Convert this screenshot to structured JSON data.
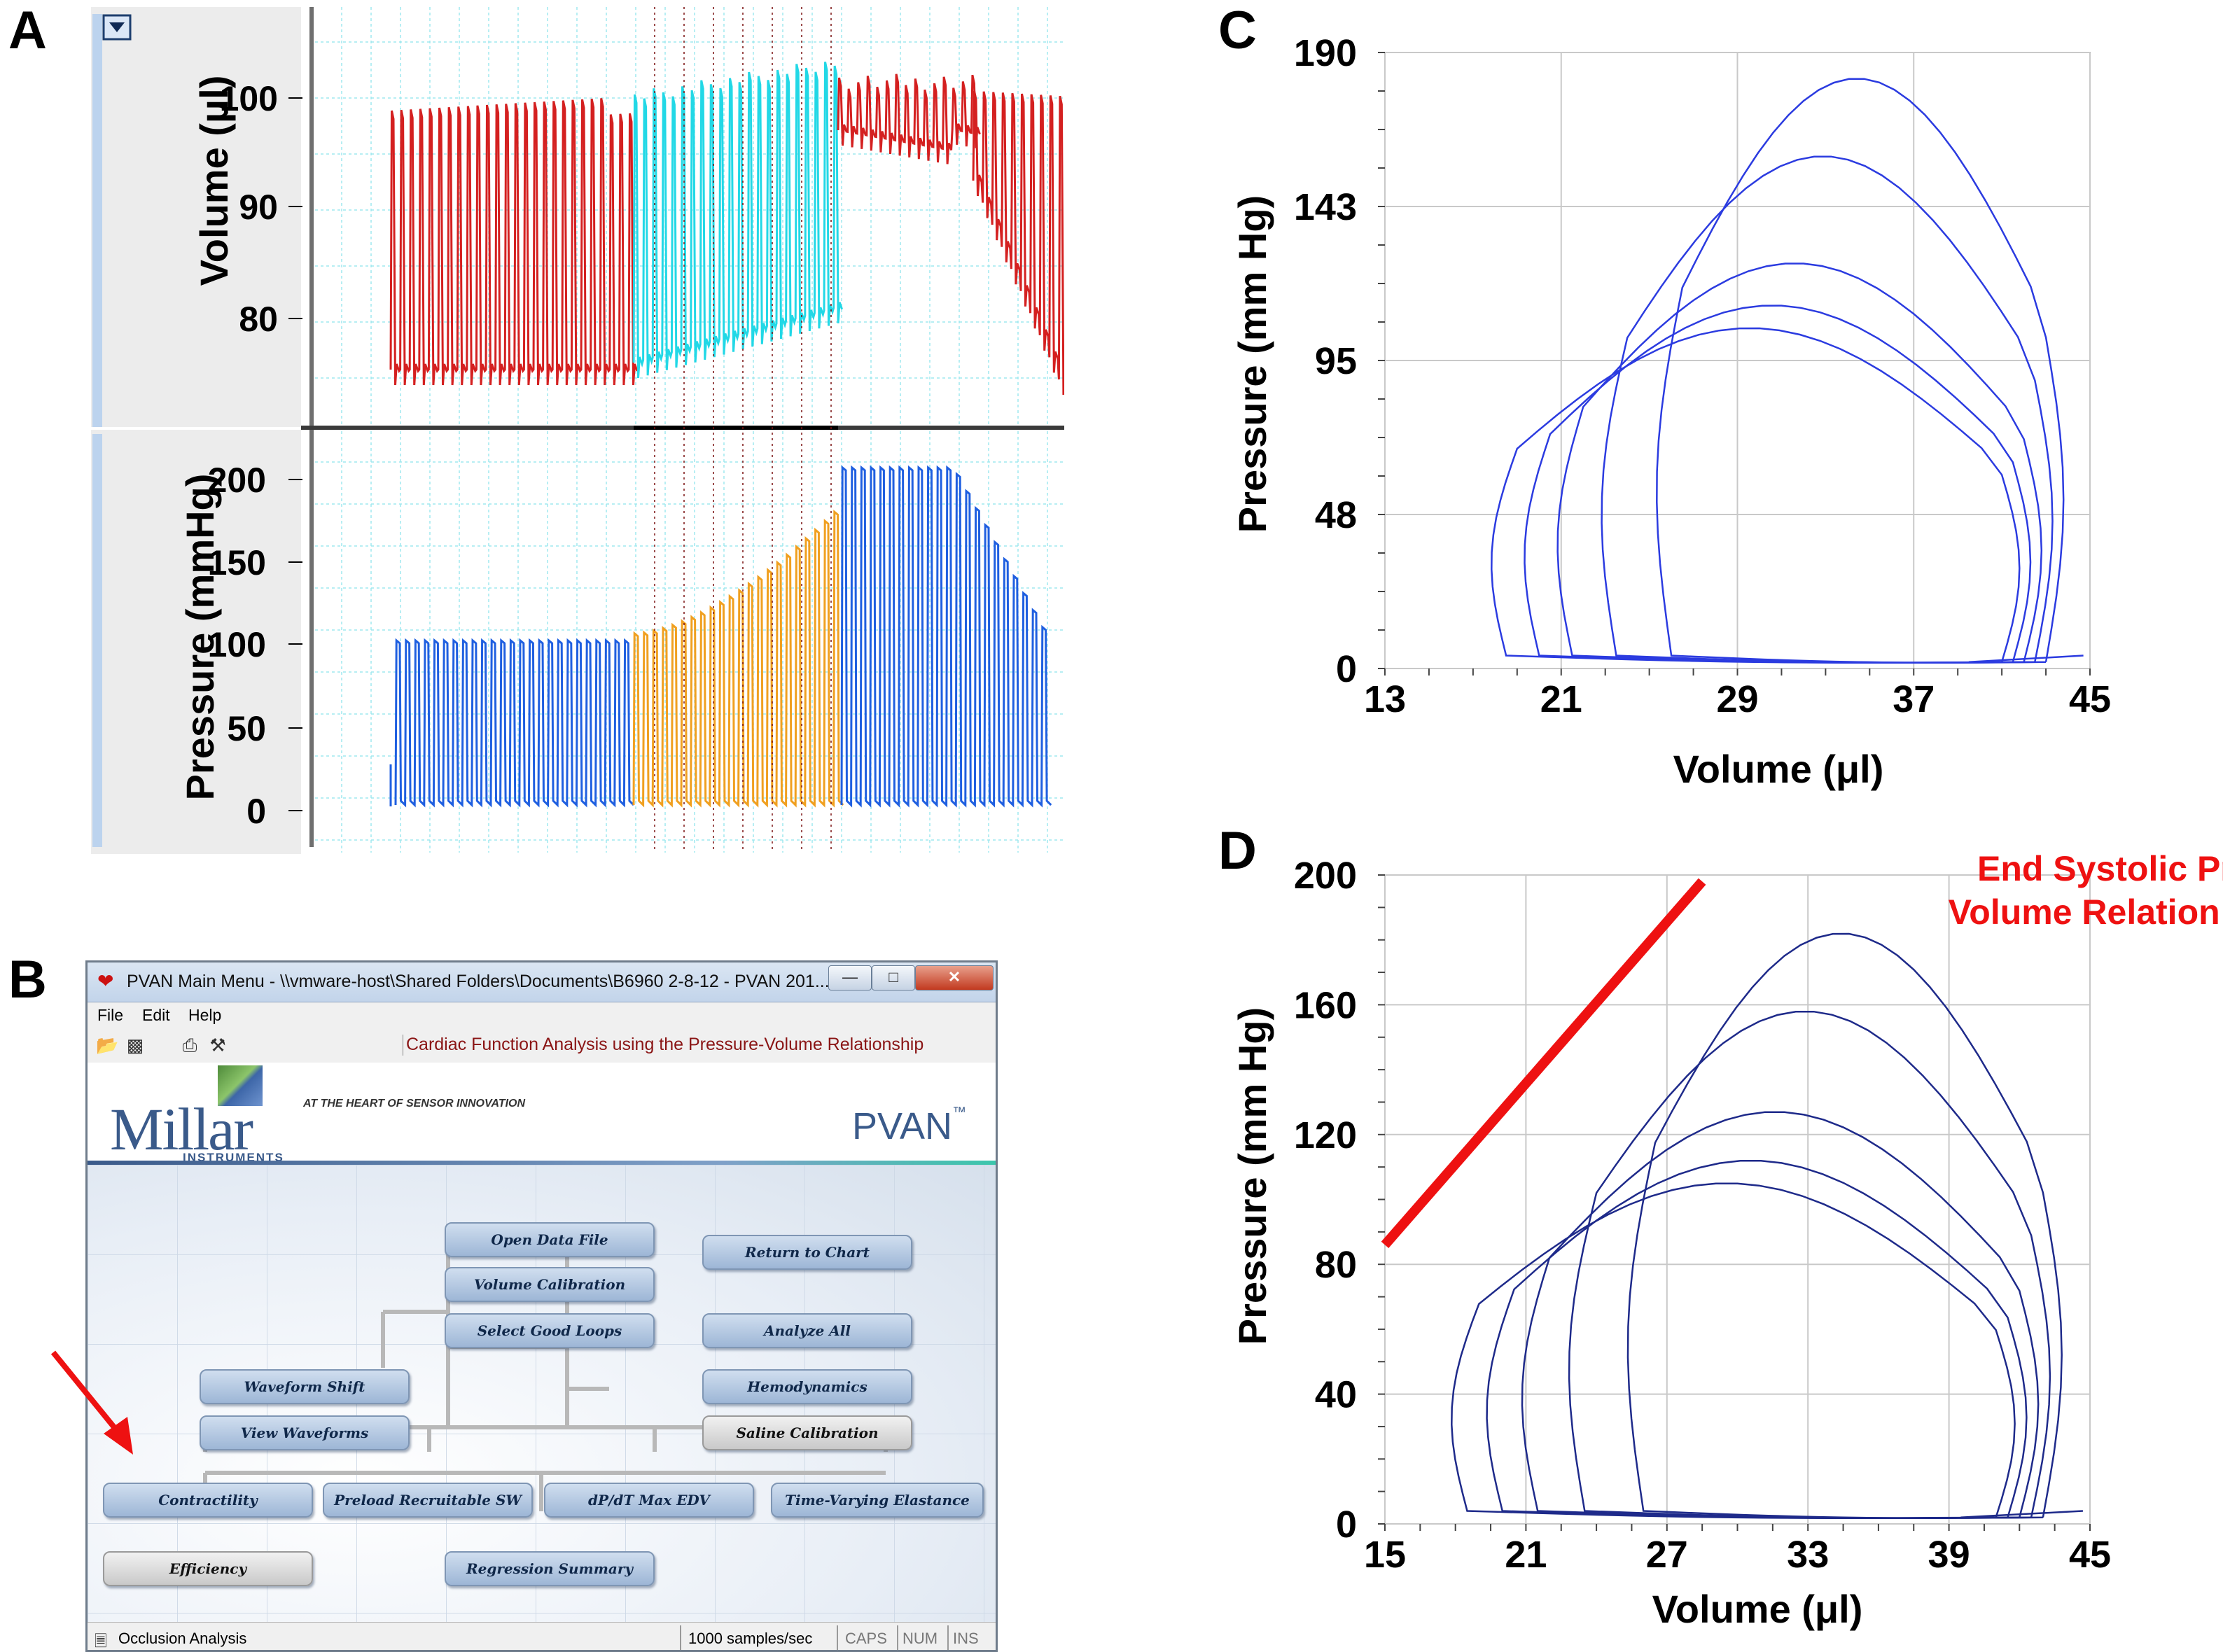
{
  "panels": {
    "a": "A",
    "b": "B",
    "c": "C",
    "d": "D"
  },
  "panel_a": {
    "volume_label": "Volume (μl)",
    "pressure_label": "Pressure (mmHg)",
    "volume_ticks": [
      "100",
      "90",
      "80"
    ],
    "pressure_ticks": [
      "200",
      "150",
      "100",
      "50",
      "0"
    ],
    "dropdown_icon": "chevron-down-icon",
    "colors": {
      "volume_trace": "#d42020",
      "volume_selected": "#22d8e6",
      "pressure_trace": "#1f5fe0",
      "pressure_selected": "#f0a020",
      "selection_bg": "#000000",
      "grid": "#9fe8ef"
    }
  },
  "panel_b": {
    "window_title": "PVAN Main Menu - \\\\vmware-host\\Shared Folders\\Documents\\B6960 2-8-12 - PVAN 201...",
    "window_buttons": {
      "minimize": "—",
      "maximize": "□",
      "close": "✕"
    },
    "menu": [
      "File",
      "Edit",
      "Help"
    ],
    "toolbar_icons": [
      "open-folder-icon",
      "save-icon",
      "print-icon",
      "tools-icon"
    ],
    "toolbar_text": "Cardiac Function Analysis using the Pressure-Volume Relationship",
    "brand": {
      "name": "Millar",
      "sub": "INSTRUMENTS",
      "tagline": "AT THE HEART OF SENSOR INNOVATION",
      "product": "PVAN",
      "tm": "™"
    },
    "buttons": {
      "open_data_file": "Open Data File",
      "volume_calibration": "Volume Calibration",
      "select_good_loops": "Select Good Loops",
      "return_to_chart": "Return to Chart",
      "analyze_all": "Analyze All",
      "waveform_shift": "Waveform Shift",
      "view_waveforms": "View Waveforms",
      "hemodynamics": "Hemodynamics",
      "saline_calibration": "Saline Calibration",
      "contractility": "Contractility",
      "preload_recruitable_sw": "Preload Recruitable SW",
      "dpdt_max_edv": "dP/dT Max EDV",
      "time_varying_elastance": "Time-Varying Elastance",
      "efficiency": "Efficiency",
      "regression_summary": "Regression Summary"
    },
    "status": {
      "left": "Occlusion Analysis",
      "rate": "1000 samples/sec",
      "caps": "CAPS",
      "num": "NUM",
      "ins": "INS"
    },
    "colors": {
      "arrow": "#ee1111",
      "button": "#a9c0de",
      "accent": "#3a5a8a"
    }
  },
  "panel_c": {
    "ylabel": "Pressure (mm Hg)",
    "xlabel": "Volume (μl)",
    "yticks": [
      "190",
      "143",
      "95",
      "48",
      "0"
    ],
    "xticks": [
      "13",
      "21",
      "29",
      "37",
      "45"
    ]
  },
  "panel_d": {
    "ylabel": "Pressure (mm Hg)",
    "xlabel": "Volume (μl)",
    "yticks": [
      "200",
      "160",
      "120",
      "80",
      "40",
      "0"
    ],
    "xticks": [
      "15",
      "21",
      "27",
      "33",
      "39",
      "45"
    ],
    "espvr_line1": "End Systolic Pressure",
    "espvr_line2": "Volume Relation (ESPVR)",
    "colors": {
      "espvr": "#ee1111",
      "loops": "#1e2a8a"
    }
  },
  "chart_data": [
    {
      "type": "line",
      "panel": "C",
      "xlabel": "Volume (μl)",
      "ylabel": "Pressure (mm Hg)",
      "xlim": [
        13,
        45
      ],
      "ylim": [
        0,
        190
      ],
      "grid": true,
      "loops": [
        {
          "ved": 17.5,
          "ves": 39.5,
          "pmax": 105
        },
        {
          "ved": 19.0,
          "ves": 40.0,
          "pmax": 112
        },
        {
          "ved": 20.5,
          "ves": 40.5,
          "pmax": 125
        },
        {
          "ved": 22.5,
          "ves": 41.0,
          "pmax": 158
        },
        {
          "ved": 25.0,
          "ves": 41.5,
          "pmax": 182
        }
      ]
    },
    {
      "type": "line",
      "panel": "D",
      "xlabel": "Volume (μl)",
      "ylabel": "Pressure (mm Hg)",
      "xlim": [
        15,
        45
      ],
      "ylim": [
        0,
        200
      ],
      "grid": true,
      "loops": [
        {
          "ved": 17.5,
          "ves": 39.5,
          "pmax": 105
        },
        {
          "ved": 19.0,
          "ves": 40.0,
          "pmax": 112
        },
        {
          "ved": 20.5,
          "ves": 40.5,
          "pmax": 127
        },
        {
          "ved": 22.5,
          "ves": 41.0,
          "pmax": 158
        },
        {
          "ved": 25.0,
          "ves": 41.5,
          "pmax": 182
        }
      ],
      "espvr": {
        "x": [
          15,
          28.5
        ],
        "y": [
          86,
          198
        ]
      }
    }
  ]
}
